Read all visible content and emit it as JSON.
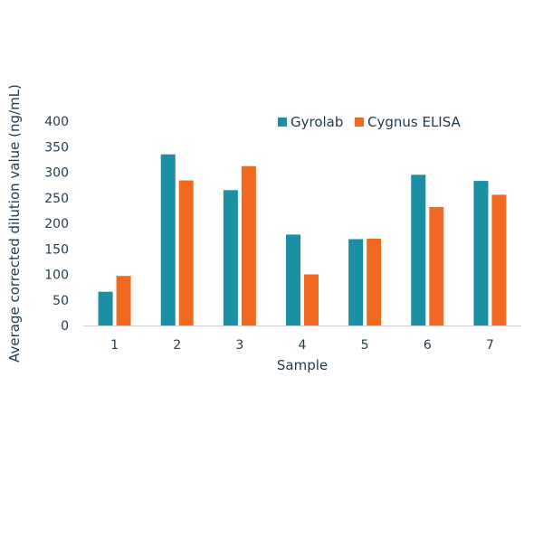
{
  "chart_data": {
    "type": "bar",
    "title": "",
    "xlabel": "Sample",
    "ylabel": "Average corrected dilution value (ng/mL)",
    "categories": [
      "1",
      "2",
      "3",
      "4",
      "5",
      "6",
      "7"
    ],
    "series": [
      {
        "name": "Gyrolab",
        "color": "#1b8fa3",
        "values": [
          66,
          335,
          265,
          178,
          169,
          295,
          283
        ]
      },
      {
        "name": "Cygnus ELISA",
        "color": "#f26a21",
        "values": [
          97,
          284,
          312,
          100,
          170,
          232,
          256
        ]
      }
    ],
    "ylim": [
      0,
      400
    ],
    "yticks": [
      "0",
      "50",
      "100",
      "150",
      "200",
      "250",
      "300",
      "350",
      "400"
    ],
    "grid": false,
    "legend_position": "top-right"
  }
}
